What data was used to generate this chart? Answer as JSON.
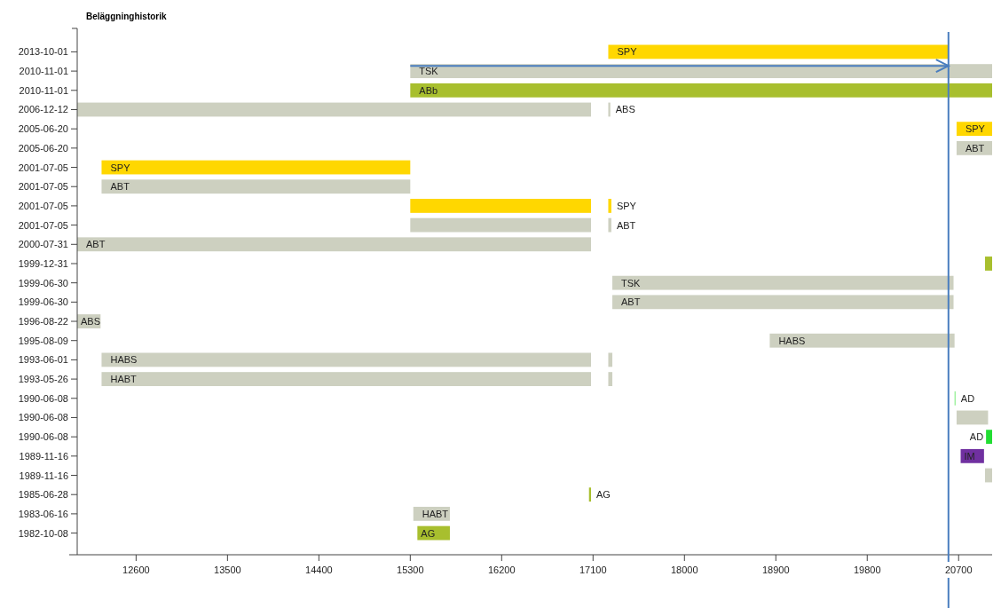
{
  "chart_data": {
    "type": "bar",
    "orientation": "horizontal",
    "title": "Beläggninghistorik",
    "categories": [
      "2013-10-01",
      "2010-11-01",
      "2010-11-01",
      "2006-12-12",
      "2005-06-20",
      "2005-06-20",
      "2001-07-05",
      "2001-07-05",
      "2001-07-05",
      "2001-07-05",
      "2000-07-31",
      "1999-12-31",
      "1999-06-30",
      "1999-06-30",
      "1996-08-22",
      "1995-08-09",
      "1993-06-01",
      "1993-05-26",
      "1990-06-08",
      "1990-06-08",
      "1990-06-08",
      "1989-11-16",
      "1989-11-16",
      "1985-06-28",
      "1983-06-16",
      "1982-10-08"
    ],
    "series": [
      {
        "base": [
          17250,
          15300,
          15300,
          12020,
          20680,
          20680,
          12260,
          12260,
          15300,
          15300,
          12020,
          20960,
          17290,
          17290,
          12020,
          18840,
          12260,
          12260,
          20660,
          20680,
          20970,
          20720,
          20960,
          17060,
          15330,
          15370
        ],
        "values": [
          3350,
          5730,
          5730,
          5060,
          350,
          350,
          3040,
          3040,
          1780,
          1780,
          5060,
          70,
          3360,
          3360,
          230,
          1820,
          4820,
          4820,
          10,
          310,
          60,
          230,
          70,
          20,
          360,
          320
        ],
        "colors": [
          "#ffd700",
          "#cdd0c0",
          "#a8bf2e",
          "#cdd0c0",
          "#ffd700",
          "#cdd0c0",
          "#ffd700",
          "#cdd0c0",
          "#ffd700",
          "#cdd0c0",
          "#cdd0c0",
          "#a8bf2e",
          "#cdd0c0",
          "#cdd0c0",
          "#cdd0c0",
          "#cdd0c0",
          "#cdd0c0",
          "#cdd0c0",
          "#88ee88",
          "#cdd0c0",
          "#22dd33",
          "#7030a0",
          "#cdd0c0",
          "#a8bf2e",
          "#cdd0c0",
          "#a8bf2e"
        ],
        "value_labels": [
          "SPY",
          "TSK",
          "ABb",
          null,
          "SPY",
          "ABT",
          "SPY",
          "ABT",
          null,
          null,
          "ABT",
          null,
          "TSK",
          "ABT",
          "ABS",
          "HABS",
          "HABS",
          "HABT",
          "AD",
          null,
          "AD",
          "IM",
          null,
          "AG",
          "HABT",
          "AG"
        ]
      },
      {
        "base": [
          null,
          null,
          null,
          17250,
          null,
          null,
          null,
          null,
          17250,
          17250,
          null,
          null,
          null,
          null,
          null,
          null,
          17250,
          17250,
          null,
          null,
          null,
          null,
          null,
          null,
          null,
          null
        ],
        "values": [
          null,
          null,
          null,
          20,
          null,
          null,
          null,
          null,
          30,
          30,
          null,
          null,
          null,
          null,
          null,
          null,
          40,
          40,
          null,
          null,
          null,
          null,
          null,
          null,
          null,
          null
        ],
        "colors": [
          null,
          null,
          null,
          "#cdd0c0",
          null,
          null,
          null,
          null,
          "#ffd700",
          "#cdd0c0",
          null,
          null,
          null,
          null,
          null,
          null,
          "#cdd0c0",
          "#cdd0c0",
          null,
          null,
          null,
          null,
          null,
          null,
          null,
          null
        ],
        "value_labels": [
          null,
          null,
          null,
          "ABS",
          null,
          null,
          null,
          null,
          "SPY",
          "ABT",
          null,
          null,
          null,
          null,
          null,
          null,
          null,
          null,
          null,
          null,
          null,
          null,
          null,
          null,
          null,
          null
        ]
      }
    ],
    "xlim": [
      12020,
      21030
    ],
    "xticks": [
      12600,
      13500,
      14400,
      15300,
      16200,
      17100,
      18000,
      18900,
      19800,
      20700
    ],
    "ref_lines": [
      {
        "axis": "x",
        "value": 20600,
        "color": "#4a7ebf"
      }
    ],
    "grid": false
  }
}
